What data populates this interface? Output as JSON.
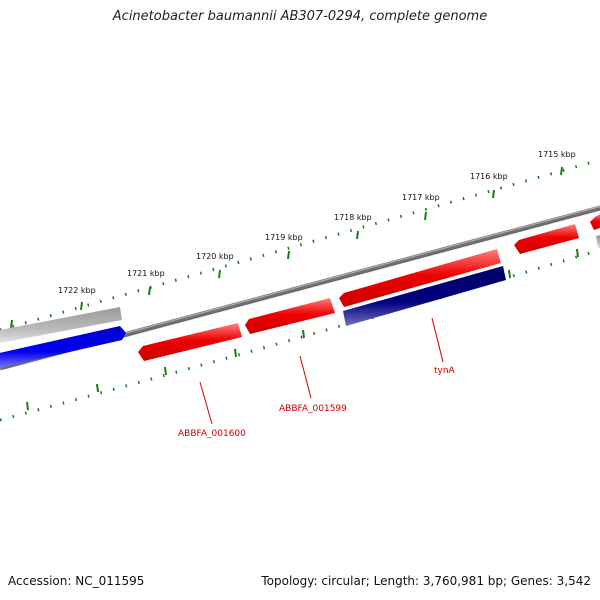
{
  "title": "Acinetobacter baumannii AB307-0294, complete genome",
  "footer": {
    "accession": "Accession: NC_011595",
    "summary": "Topology: circular; Length: 3,760,981 bp; Genes: 3,542"
  },
  "scale_ticks": [
    {
      "label": "1722 kbp"
    },
    {
      "label": "1721 kbp"
    },
    {
      "label": "1720 kbp"
    },
    {
      "label": "1719 kbp"
    },
    {
      "label": "1718 kbp"
    },
    {
      "label": "1717 kbp"
    },
    {
      "label": "1716 kbp"
    },
    {
      "label": "1715 kbp"
    }
  ],
  "gene_labels": [
    {
      "label": "ABBFA_001600",
      "color": "#cc0000"
    },
    {
      "label": "ABBFA_001599",
      "color": "#cc0000"
    },
    {
      "label": "tynA",
      "color": "#cc0000"
    }
  ],
  "colors": {
    "backbone": "#808080",
    "gene_forward": "#ee0000",
    "gene_selected": "#000080",
    "gene_other_strand": "#0000ee",
    "gene_grey": "#bbbbbb",
    "tick": "#1a7a1a"
  }
}
